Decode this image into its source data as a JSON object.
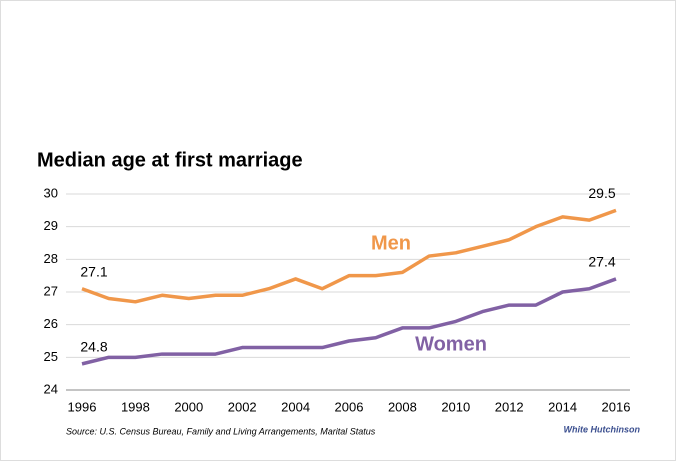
{
  "chart_data": {
    "type": "line",
    "title": "Median age at first marriage",
    "source": "Source: U.S. Census Bureau, Family and Living Arrangements, Marital Status",
    "logo": "White Hutchinson",
    "x": [
      1996,
      1997,
      1998,
      1999,
      2000,
      2001,
      2002,
      2003,
      2004,
      2005,
      2006,
      2007,
      2008,
      2009,
      2010,
      2011,
      2012,
      2013,
      2014,
      2015,
      2016
    ],
    "series": [
      {
        "name": "Men",
        "color": "#f0974a",
        "values": [
          27.1,
          26.8,
          26.7,
          26.9,
          26.8,
          26.9,
          26.9,
          27.1,
          27.4,
          27.1,
          27.5,
          27.5,
          27.6,
          28.1,
          28.2,
          28.4,
          28.6,
          29.0,
          29.3,
          29.2,
          29.5
        ]
      },
      {
        "name": "Women",
        "color": "#8161a4",
        "values": [
          24.8,
          25.0,
          25.0,
          25.1,
          25.1,
          25.1,
          25.3,
          25.3,
          25.3,
          25.3,
          25.5,
          25.6,
          25.9,
          25.9,
          26.1,
          26.4,
          26.6,
          26.6,
          27.0,
          27.1,
          27.4
        ]
      }
    ],
    "xlim": [
      1996,
      2016
    ],
    "xticks": [
      1996,
      1998,
      2000,
      2002,
      2004,
      2006,
      2008,
      2010,
      2012,
      2014,
      2016
    ],
    "ylim": [
      24,
      30
    ],
    "yticks": [
      24,
      25,
      26,
      27,
      28,
      29,
      30
    ],
    "grid": true
  }
}
